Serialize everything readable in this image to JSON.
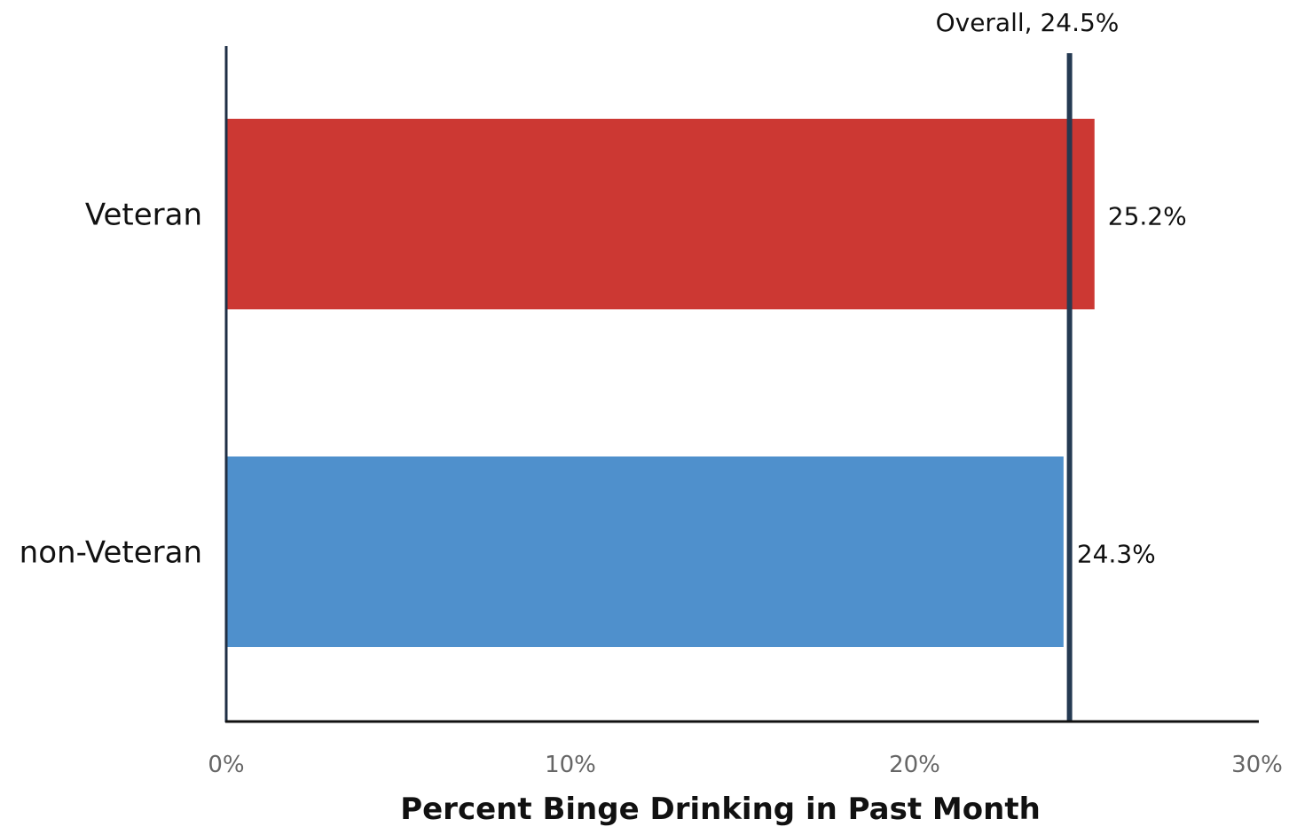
{
  "chart_data": {
    "type": "bar",
    "orientation": "horizontal",
    "categories": [
      "Veteran",
      "non-Veteran"
    ],
    "values": [
      25.2,
      24.3
    ],
    "value_labels": [
      "25.2%",
      "24.3%"
    ],
    "colors": [
      "#cc3833",
      "#4f90cc"
    ],
    "xlabel": "Percent Binge Drinking in Past Month",
    "xlim": [
      0,
      30
    ],
    "xticks": [
      0,
      10,
      20,
      30
    ],
    "xtick_labels": [
      "0%",
      "10%",
      "20%",
      "30%"
    ],
    "grid": false,
    "reference_line": {
      "value": 24.5,
      "label": "Overall, 24.5%",
      "color": "#253a52"
    },
    "axis_color": "#1f2f45"
  }
}
